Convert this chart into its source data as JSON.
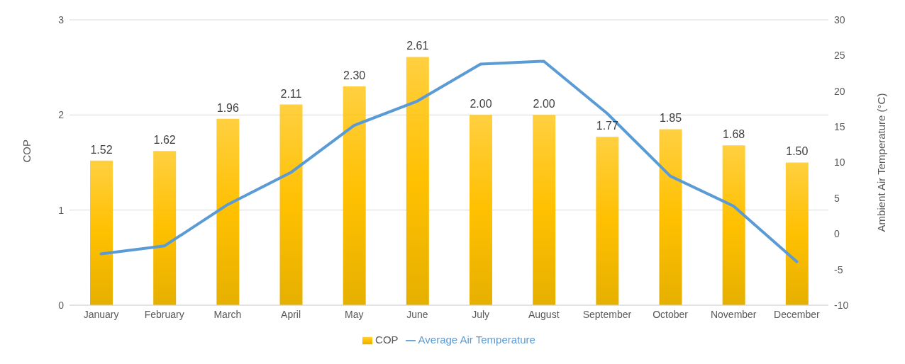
{
  "chart_data": {
    "type": "bar",
    "ylabel": "COP",
    "y2label": "Ambient Air Temperature (°C)",
    "categories": [
      "January",
      "February",
      "March",
      "April",
      "May",
      "June",
      "July",
      "August",
      "September",
      "October",
      "November",
      "December"
    ],
    "series": [
      {
        "name": "COP",
        "color": "#ffc000",
        "values": [
          1.52,
          1.62,
          1.96,
          2.11,
          2.3,
          2.61,
          2.0,
          2.0,
          1.77,
          1.85,
          1.68,
          1.5
        ],
        "value_labels": [
          "1.52",
          "1.62",
          "1.96",
          "2.11",
          "2.30",
          "2.61",
          "2.00",
          "2.00",
          "1.77",
          "1.85",
          "1.68",
          "1.50"
        ]
      },
      {
        "name": "Average Air Temperature",
        "type": "line",
        "axis": "y2",
        "color": "#5b9bd5",
        "values": [
          -2.8,
          -1.7,
          4.1,
          8.6,
          15.2,
          18.6,
          23.8,
          24.2,
          16.9,
          8.1,
          3.9,
          -3.9
        ]
      }
    ],
    "ylim": [
      0,
      3
    ],
    "yticks": [
      0,
      1,
      2,
      3
    ],
    "y2lim": [
      -10,
      30
    ],
    "y2ticks": [
      -10,
      -5,
      0,
      5,
      10,
      15,
      20,
      25,
      30
    ],
    "grid": "y",
    "legend": "bottom",
    "marker": "none",
    "line_style": "solid"
  }
}
